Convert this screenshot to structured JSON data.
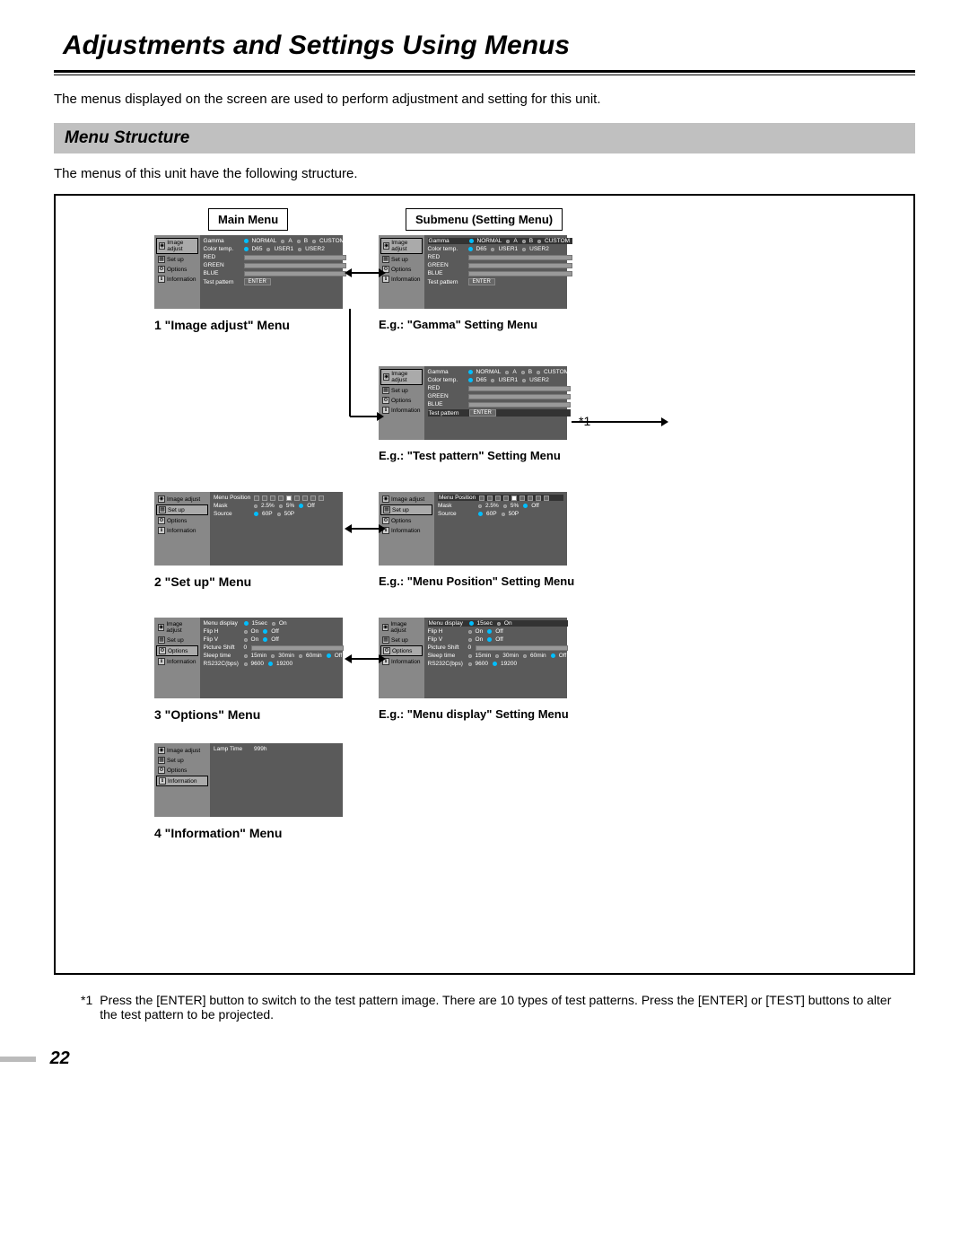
{
  "page": {
    "title": "Adjustments and Settings Using Menus",
    "intro": "The menus displayed on the screen are used to perform adjustment and setting for this unit.",
    "section_header": "Menu Structure",
    "section_text": "The menus of this unit have the following structure.",
    "page_number": "22"
  },
  "columns": {
    "left_label": "Main Menu",
    "right_label": "Submenu (Setting Menu)"
  },
  "sidebar_items": [
    "Image adjust",
    "Set up",
    "Options",
    "Information"
  ],
  "panels": {
    "image_adjust": {
      "rows": [
        {
          "lbl": "Gamma",
          "opts": [
            "NORMAL",
            "A",
            "B",
            "CUSTOM"
          ],
          "sel": 0
        },
        {
          "lbl": "Color temp.",
          "opts": [
            "D65",
            "USER1",
            "USER2"
          ],
          "sel": 0
        },
        {
          "lbl": "RED",
          "type": "bar"
        },
        {
          "lbl": "GREEN",
          "type": "bar"
        },
        {
          "lbl": "BLUE",
          "type": "bar"
        },
        {
          "lbl": "Test pattern",
          "type": "btn",
          "val": "ENTER"
        }
      ],
      "caption": "1   \"Image adjust\" Menu",
      "sub_caption_gamma": "E.g.: \"Gamma\" Setting Menu",
      "sub_caption_test": "E.g.: \"Test pattern\" Setting Menu"
    },
    "setup": {
      "rows": [
        {
          "lbl": "Menu Position",
          "type": "icons"
        },
        {
          "lbl": "Mask",
          "opts": [
            "2.5%",
            "5%",
            "Off"
          ],
          "sel": 2
        },
        {
          "lbl": "Source",
          "opts": [
            "60P",
            "50P"
          ],
          "sel": 0
        }
      ],
      "caption": "2   \"Set up\" Menu",
      "sub_caption": "E.g.: \"Menu Position\" Setting Menu"
    },
    "options": {
      "rows": [
        {
          "lbl": "Menu display",
          "opts": [
            "15sec",
            "On"
          ],
          "sel": 0
        },
        {
          "lbl": "Flip H",
          "opts": [
            "On",
            "Off"
          ],
          "sel": 1
        },
        {
          "lbl": "Flip V",
          "opts": [
            "On",
            "Off"
          ],
          "sel": 1
        },
        {
          "lbl": "Picture Shift",
          "type": "bar",
          "val": "0"
        },
        {
          "lbl": "Sleep time",
          "opts": [
            "15min",
            "30min",
            "60min",
            "Off"
          ],
          "sel": 3
        },
        {
          "lbl": "RS232C(bps)",
          "opts": [
            "9600",
            "19200"
          ],
          "sel": 1
        }
      ],
      "caption": "3  \"Options\"  Menu",
      "sub_caption": "E.g.: \"Menu display\" Setting Menu"
    },
    "info": {
      "rows": [
        {
          "lbl": "Lamp Time",
          "val": "999h"
        }
      ],
      "caption": "4  \"Information\"  Menu"
    }
  },
  "footnote": {
    "ref": "*1",
    "text": "Press the [ENTER] button to switch to the test pattern image. There are 10 types of test patterns. Press the [ENTER] or [TEST] buttons to alter the test pattern to be projected."
  },
  "asterisk_marker": "*1"
}
